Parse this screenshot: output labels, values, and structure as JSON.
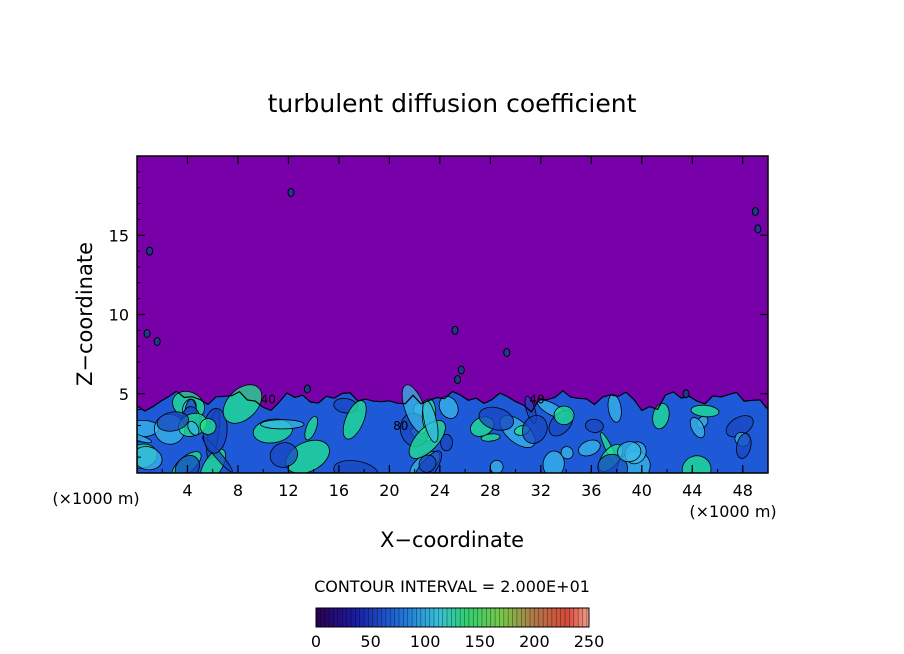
{
  "chart_data": {
    "type": "heatmap",
    "title": "turbulent diffusion coefficient",
    "xlabel": "X−coordinate",
    "ylabel": "Z−coordinate",
    "x_unit": "(×1000 m)",
    "x_unit_left": "(×1000 m)",
    "xlim": [
      0,
      50
    ],
    "ylim": [
      0,
      20
    ],
    "xticks": [
      4,
      8,
      12,
      16,
      20,
      24,
      28,
      32,
      36,
      40,
      44,
      48
    ],
    "yticks": [
      5,
      10,
      15
    ],
    "turbulent_layer_top": 5,
    "background_value": 0,
    "contour_labels": [
      {
        "text": "40",
        "x": 10.4,
        "y": 4.4
      },
      {
        "text": "40",
        "x": 31.7,
        "y": 4.4
      },
      {
        "text": "80",
        "x": 20.9,
        "y": 2.7
      }
    ],
    "isolated_spots": [
      [
        12.2,
        17.7
      ],
      [
        1.0,
        14.0
      ],
      [
        0.8,
        8.8
      ],
      [
        1.6,
        8.3
      ],
      [
        25.2,
        9.0
      ],
      [
        25.7,
        6.5
      ],
      [
        25.4,
        5.9
      ],
      [
        29.3,
        7.6
      ],
      [
        49.0,
        16.5
      ],
      [
        49.2,
        15.4
      ],
      [
        13.5,
        5.3
      ],
      [
        43.5,
        5.0
      ]
    ],
    "colorbar": {
      "label": "CONTOUR INTERVAL = 2.000E+01",
      "min": 0,
      "max": 250,
      "interval": 20,
      "ticks": [
        0,
        50,
        100,
        150,
        200,
        250
      ]
    },
    "colors": {
      "background": "#7800a8",
      "low": "#1e5ad8",
      "mid": "#3ab8e8",
      "high": "#20e890"
    }
  }
}
